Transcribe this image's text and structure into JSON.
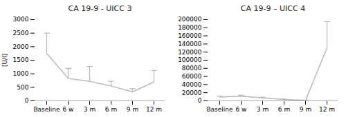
{
  "chart_data": [
    {
      "type": "line",
      "title": "CA 19-9 - UICC 3",
      "categories": [
        "Baseline",
        "6 w",
        "3 m",
        "6 m",
        "9 m",
        "12 m"
      ],
      "values": [
        1751.6,
        829.4,
        720.0,
        550.0,
        330.0,
        700.0
      ],
      "errors": [
        750.0,
        370.0,
        550.0,
        170.0,
        120.0,
        420.0
      ],
      "color": "#b8b8b8",
      "ylim": [
        0,
        3000
      ],
      "yticks": [
        0,
        500,
        1000,
        1500,
        2000,
        2500,
        3000
      ],
      "ylabel": "[U/l]",
      "grid": false
    },
    {
      "type": "line",
      "title": "CA 19-9 – UICC 4",
      "categories": [
        "Baseline",
        "6 w",
        "3 m",
        "6 m",
        "9 m",
        "12 m"
      ],
      "values": [
        9500.0,
        11500.0,
        7000.0,
        3500.0,
        1200.0,
        130000.0
      ],
      "errors": [
        1800.0,
        2500.0,
        2000.0,
        900.0,
        400.0,
        65000.0
      ],
      "color": "#b8b8b8",
      "ylim": [
        0,
        200000
      ],
      "yticks": [
        0,
        20000,
        40000,
        60000,
        80000,
        100000,
        120000,
        140000,
        160000,
        180000,
        200000
      ],
      "grid": false
    }
  ]
}
